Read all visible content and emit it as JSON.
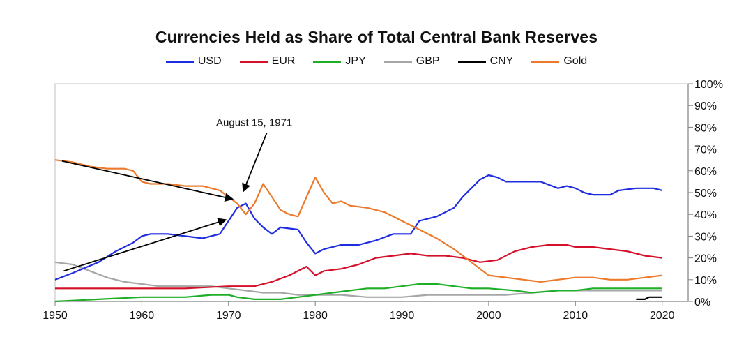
{
  "chart_data": {
    "type": "line",
    "title": "Currencies Held as Share of Total Central Bank Reserves",
    "xlabel": "",
    "ylabel": "",
    "xlim": [
      1950,
      2023
    ],
    "ylim": [
      0,
      100
    ],
    "x_ticks": [
      "1950",
      "1960",
      "1970",
      "1980",
      "1990",
      "2000",
      "2010",
      "2020"
    ],
    "y_ticks": [
      "0%",
      "10%",
      "20%",
      "30%",
      "40%",
      "50%",
      "60%",
      "70%",
      "80%",
      "90%",
      "100%"
    ],
    "legend_position": "top-center",
    "grid": false,
    "series": [
      {
        "name": "USD",
        "color": "#1f2de0",
        "points": [
          [
            1950,
            10
          ],
          [
            1952,
            13
          ],
          [
            1955,
            18
          ],
          [
            1957,
            23
          ],
          [
            1959,
            27
          ],
          [
            1960,
            30
          ],
          [
            1961,
            31
          ],
          [
            1963,
            31
          ],
          [
            1965,
            30
          ],
          [
            1967,
            29
          ],
          [
            1969,
            31
          ],
          [
            1970,
            37
          ],
          [
            1971,
            43
          ],
          [
            1972,
            45
          ],
          [
            1973,
            38
          ],
          [
            1974,
            34
          ],
          [
            1975,
            31
          ],
          [
            1976,
            34
          ],
          [
            1978,
            33
          ],
          [
            1979,
            27
          ],
          [
            1980,
            22
          ],
          [
            1981,
            24
          ],
          [
            1983,
            26
          ],
          [
            1985,
            26
          ],
          [
            1987,
            28
          ],
          [
            1989,
            31
          ],
          [
            1991,
            31
          ],
          [
            1992,
            37
          ],
          [
            1994,
            39
          ],
          [
            1996,
            43
          ],
          [
            1997,
            48
          ],
          [
            1998,
            52
          ],
          [
            1999,
            56
          ],
          [
            2000,
            58
          ],
          [
            2001,
            57
          ],
          [
            2002,
            55
          ],
          [
            2004,
            55
          ],
          [
            2006,
            55
          ],
          [
            2008,
            52
          ],
          [
            2009,
            53
          ],
          [
            2010,
            52
          ],
          [
            2011,
            50
          ],
          [
            2012,
            49
          ],
          [
            2014,
            49
          ],
          [
            2015,
            51
          ],
          [
            2017,
            52
          ],
          [
            2019,
            52
          ],
          [
            2020,
            51
          ]
        ]
      },
      {
        "name": "EUR",
        "color": "#d4102a",
        "points": [
          [
            1950,
            6
          ],
          [
            1955,
            6
          ],
          [
            1960,
            6
          ],
          [
            1965,
            6
          ],
          [
            1970,
            7
          ],
          [
            1973,
            7
          ],
          [
            1975,
            9
          ],
          [
            1977,
            12
          ],
          [
            1979,
            16
          ],
          [
            1980,
            12
          ],
          [
            1981,
            14
          ],
          [
            1983,
            15
          ],
          [
            1985,
            17
          ],
          [
            1987,
            20
          ],
          [
            1989,
            21
          ],
          [
            1991,
            22
          ],
          [
            1993,
            21
          ],
          [
            1995,
            21
          ],
          [
            1997,
            20
          ],
          [
            1999,
            18
          ],
          [
            2001,
            19
          ],
          [
            2003,
            23
          ],
          [
            2005,
            25
          ],
          [
            2007,
            26
          ],
          [
            2009,
            26
          ],
          [
            2010,
            25
          ],
          [
            2012,
            25
          ],
          [
            2014,
            24
          ],
          [
            2016,
            23
          ],
          [
            2018,
            21
          ],
          [
            2020,
            20
          ]
        ]
      },
      {
        "name": "JPY",
        "color": "#1fae27",
        "points": [
          [
            1950,
            0
          ],
          [
            1955,
            1
          ],
          [
            1960,
            2
          ],
          [
            1965,
            2
          ],
          [
            1968,
            3
          ],
          [
            1970,
            3
          ],
          [
            1971,
            2
          ],
          [
            1973,
            1
          ],
          [
            1976,
            1
          ],
          [
            1978,
            2
          ],
          [
            1980,
            3
          ],
          [
            1982,
            4
          ],
          [
            1984,
            5
          ],
          [
            1986,
            6
          ],
          [
            1988,
            6
          ],
          [
            1990,
            7
          ],
          [
            1992,
            8
          ],
          [
            1994,
            8
          ],
          [
            1996,
            7
          ],
          [
            1998,
            6
          ],
          [
            2000,
            6
          ],
          [
            2003,
            5
          ],
          [
            2005,
            4
          ],
          [
            2008,
            5
          ],
          [
            2010,
            5
          ],
          [
            2012,
            6
          ],
          [
            2014,
            6
          ],
          [
            2016,
            6
          ],
          [
            2018,
            6
          ],
          [
            2020,
            6
          ]
        ]
      },
      {
        "name": "GBP",
        "color": "#a6a6a6",
        "points": [
          [
            1950,
            18
          ],
          [
            1952,
            17
          ],
          [
            1954,
            14
          ],
          [
            1956,
            11
          ],
          [
            1958,
            9
          ],
          [
            1960,
            8
          ],
          [
            1962,
            7
          ],
          [
            1965,
            7
          ],
          [
            1968,
            7
          ],
          [
            1970,
            6
          ],
          [
            1972,
            5
          ],
          [
            1974,
            4
          ],
          [
            1976,
            4
          ],
          [
            1978,
            3
          ],
          [
            1980,
            3
          ],
          [
            1983,
            3
          ],
          [
            1986,
            2
          ],
          [
            1988,
            2
          ],
          [
            1990,
            2
          ],
          [
            1993,
            3
          ],
          [
            1996,
            3
          ],
          [
            1999,
            3
          ],
          [
            2002,
            3
          ],
          [
            2005,
            4
          ],
          [
            2008,
            5
          ],
          [
            2010,
            5
          ],
          [
            2012,
            5
          ],
          [
            2014,
            5
          ],
          [
            2016,
            5
          ],
          [
            2018,
            5
          ],
          [
            2020,
            5
          ]
        ]
      },
      {
        "name": "CNY",
        "color": "#000000",
        "points": [
          [
            2017,
            1
          ],
          [
            2018,
            1
          ],
          [
            2018.5,
            2
          ],
          [
            2020,
            2
          ]
        ]
      },
      {
        "name": "Gold",
        "color": "#ec7a2c",
        "points": [
          [
            1950,
            65
          ],
          [
            1952,
            64
          ],
          [
            1954,
            62
          ],
          [
            1956,
            61
          ],
          [
            1958,
            61
          ],
          [
            1959,
            60
          ],
          [
            1960,
            55
          ],
          [
            1961,
            54
          ],
          [
            1963,
            54
          ],
          [
            1965,
            53
          ],
          [
            1967,
            53
          ],
          [
            1969,
            51
          ],
          [
            1970,
            48
          ],
          [
            1971,
            45
          ],
          [
            1972,
            40
          ],
          [
            1973,
            45
          ],
          [
            1974,
            54
          ],
          [
            1975,
            48
          ],
          [
            1976,
            42
          ],
          [
            1977,
            40
          ],
          [
            1978,
            39
          ],
          [
            1979,
            48
          ],
          [
            1980,
            57
          ],
          [
            1981,
            50
          ],
          [
            1982,
            45
          ],
          [
            1983,
            46
          ],
          [
            1984,
            44
          ],
          [
            1986,
            43
          ],
          [
            1988,
            41
          ],
          [
            1990,
            37
          ],
          [
            1992,
            33
          ],
          [
            1994,
            29
          ],
          [
            1996,
            24
          ],
          [
            1998,
            18
          ],
          [
            2000,
            12
          ],
          [
            2002,
            11
          ],
          [
            2004,
            10
          ],
          [
            2006,
            9
          ],
          [
            2008,
            10
          ],
          [
            2010,
            11
          ],
          [
            2012,
            11
          ],
          [
            2014,
            10
          ],
          [
            2016,
            10
          ],
          [
            2018,
            11
          ],
          [
            2020,
            12
          ]
        ]
      }
    ],
    "annotations": [
      {
        "text": "August 15, 1971",
        "x": 1972,
        "y": 80
      }
    ]
  }
}
